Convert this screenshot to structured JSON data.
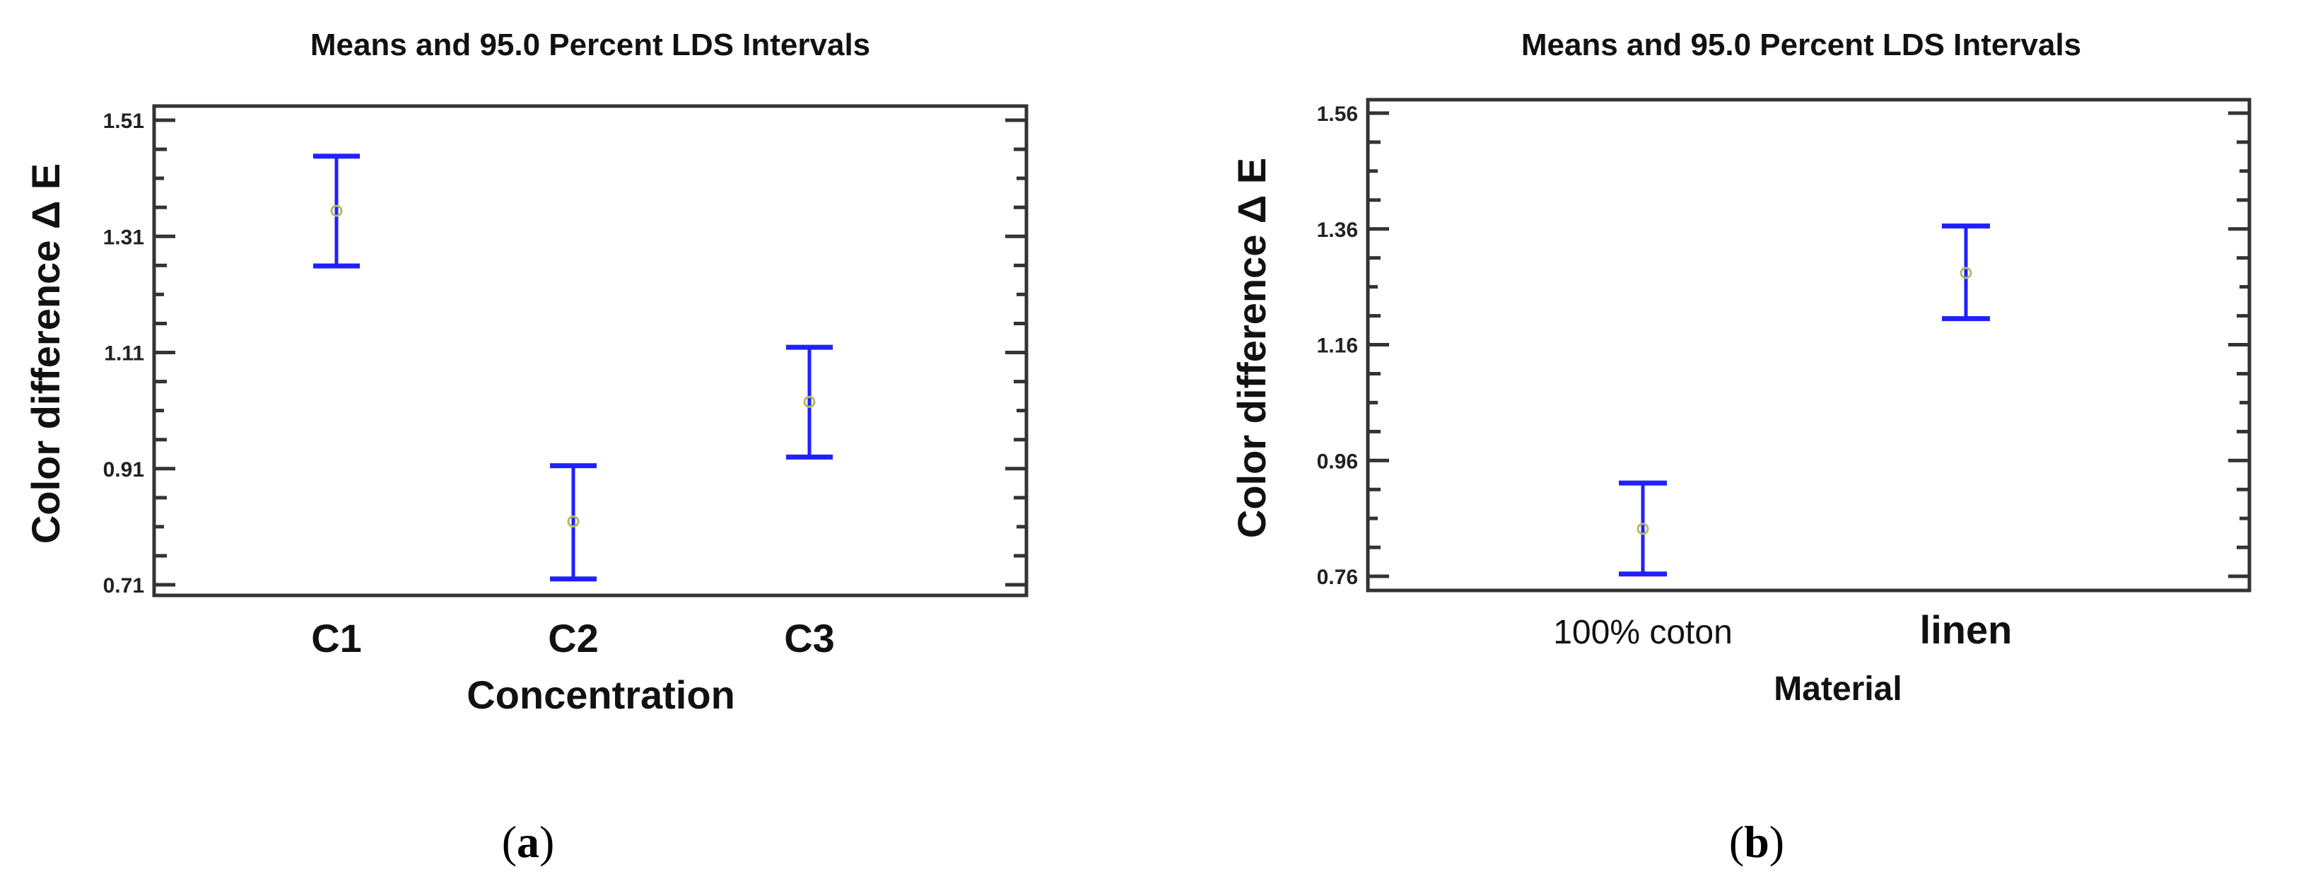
{
  "figure": {
    "captions": [
      {
        "open": "(",
        "letter": "a",
        "close": ")"
      },
      {
        "open": "(",
        "letter": "b",
        "close": ")"
      }
    ]
  },
  "colors": {
    "interval": "#2020ff",
    "mean_marker": "#b8b860",
    "axes": "#333333",
    "text": "#111111"
  },
  "chart_data": [
    {
      "id": "a",
      "type": "errorbar",
      "title": "Means and 95.0 Percent LDS Intervals",
      "xlabel": "Concentration",
      "ylabel": "Color difference  Δ E",
      "categories": [
        "C1",
        "C2",
        "C3"
      ],
      "means": [
        1.354,
        0.819,
        1.025
      ],
      "lower": [
        1.259,
        0.72,
        0.93
      ],
      "upper": [
        1.448,
        0.915,
        1.119
      ],
      "ylim": [
        0.69,
        1.535
      ],
      "yticks": [
        0.71,
        0.91,
        1.11,
        1.31,
        1.51
      ],
      "ytick_labels": [
        "0.71",
        "0.91",
        "1.11",
        "1.31",
        "1.51"
      ],
      "minor_ticks_per_interval": 3,
      "grid": false,
      "legend": null
    },
    {
      "id": "b",
      "type": "errorbar",
      "title": "Means and 95.0 Percent LDS Intervals",
      "xlabel": "Material",
      "ylabel": "Color difference  Δ E",
      "categories": [
        "100% coton",
        "linen"
      ],
      "means": [
        0.842,
        1.284
      ],
      "lower": [
        0.764,
        1.205
      ],
      "upper": [
        0.921,
        1.365
      ],
      "ylim": [
        0.745,
        1.585
      ],
      "yticks": [
        0.76,
        0.96,
        1.16,
        1.36,
        1.56
      ],
      "ytick_labels": [
        "0.76",
        "0.96",
        "1.16",
        "1.36",
        "1.56"
      ],
      "minor_ticks_per_interval": 3,
      "grid": false,
      "legend": null
    }
  ]
}
